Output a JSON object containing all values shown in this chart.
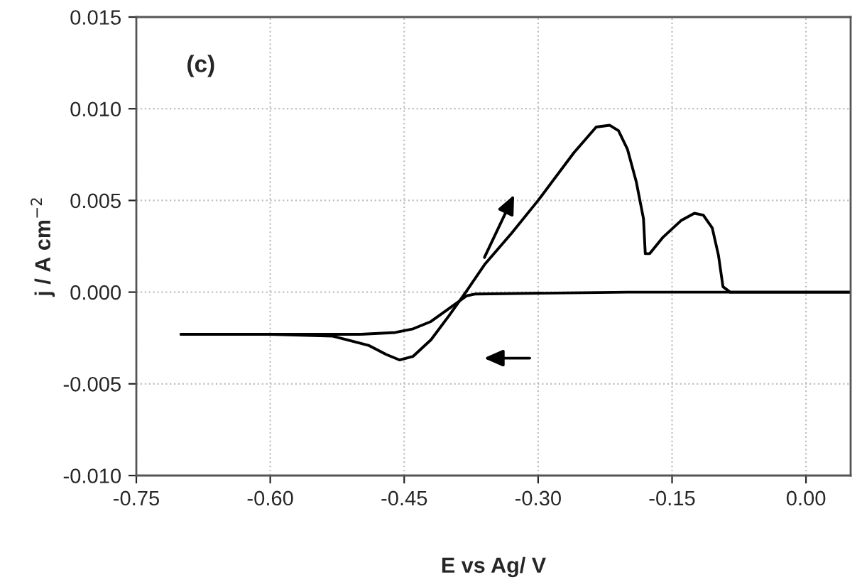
{
  "chart_data": {
    "type": "line",
    "xlabel": "E vs Ag/ V",
    "ylabel": "j / A cm$^{−2}$",
    "annotations": [
      "(c)"
    ],
    "xlim": [
      -0.75,
      0.05
    ],
    "xticks": [
      {
        "value": -0.75,
        "label": "-0.75"
      },
      {
        "value": -0.6,
        "label": "-0.60"
      },
      {
        "value": -0.45,
        "label": "-0.45"
      },
      {
        "value": -0.3,
        "label": "-0.30"
      },
      {
        "value": -0.15,
        "label": "-0.15"
      },
      {
        "value": 0,
        "label": "0.00"
      }
    ],
    "ylim": [
      -0.01,
      0.015
    ],
    "yticks": [
      {
        "value": -0.01,
        "label": "-0.010"
      },
      {
        "value": -0.005,
        "label": "-0.005"
      },
      {
        "value": 0,
        "label": "0.000"
      },
      {
        "value": 0.005,
        "label": "0.005"
      },
      {
        "value": 0.01,
        "label": "0.010"
      },
      {
        "value": 0.015,
        "label": "0.015"
      }
    ],
    "grid": true,
    "marker": "none",
    "line_style": "solid",
    "series": [
      {
        "color": "#000000",
        "x": [
          -0.7,
          -0.6,
          -0.53,
          -0.49,
          -0.47,
          -0.455,
          -0.44,
          -0.42,
          -0.4,
          -0.381,
          -0.36,
          -0.33,
          -0.3,
          -0.26,
          -0.235,
          -0.22,
          -0.21,
          -0.2,
          -0.19,
          -0.182,
          -0.18,
          -0.175,
          -0.16,
          -0.14,
          -0.125,
          -0.115,
          -0.105,
          -0.098,
          -0.093,
          -0.085,
          0.0,
          0.05
        ],
        "values": [
          -0.0023,
          -0.0023,
          -0.0024,
          -0.0029,
          -0.0034,
          -0.0037,
          -0.0035,
          -0.0026,
          -0.0013,
          0.0,
          0.0015,
          0.0032,
          0.005,
          0.0076,
          0.009,
          0.0091,
          0.0088,
          0.0078,
          0.006,
          0.004,
          0.0021,
          0.0021,
          0.003,
          0.0039,
          0.0043,
          0.0042,
          0.0035,
          0.002,
          0.0003,
          0.0,
          0.0,
          0.0
        ]
      },
      {
        "color": "#000000",
        "x": [
          0.05,
          -0.2,
          -0.37,
          -0.38,
          -0.4,
          -0.42,
          -0.44,
          -0.46,
          -0.5,
          -0.7
        ],
        "values": [
          0.0,
          0.0,
          -0.0001,
          -0.0002,
          -0.0009,
          -0.0016,
          -0.002,
          -0.0022,
          -0.0023,
          -0.0023
        ]
      }
    ]
  }
}
